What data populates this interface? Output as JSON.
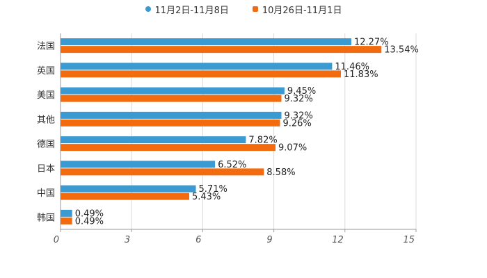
{
  "chart_data": {
    "type": "bar",
    "orientation": "horizontal",
    "title": "",
    "xlabel": "",
    "ylabel": "",
    "xlim": [
      0,
      15
    ],
    "xticks": [
      0,
      3,
      6,
      9,
      12,
      15
    ],
    "grid": true,
    "legend_position": "top-center",
    "categories": [
      "法国",
      "英国",
      "美国",
      "其他",
      "德国",
      "日本",
      "中国",
      "韩国"
    ],
    "series": [
      {
        "name": "11月2日-11月8日",
        "color": "#3a9ad1",
        "marker": "circle",
        "values": [
          12.27,
          11.46,
          9.45,
          9.32,
          7.82,
          6.52,
          5.71,
          0.49
        ],
        "labels": [
          "12.27%",
          "11.46%",
          "9.45%",
          "9.32%",
          "7.82%",
          "6.52%",
          "5.71%",
          "0.49%"
        ]
      },
      {
        "name": "10月26日-11月1日",
        "color": "#f26b0f",
        "marker": "square",
        "values": [
          13.54,
          11.83,
          9.32,
          9.26,
          9.07,
          8.58,
          5.43,
          0.49
        ],
        "labels": [
          "13.54%",
          "11.83%",
          "9.32%",
          "9.26%",
          "9.07%",
          "8.58%",
          "5.43%",
          "0.49%"
        ]
      }
    ]
  }
}
